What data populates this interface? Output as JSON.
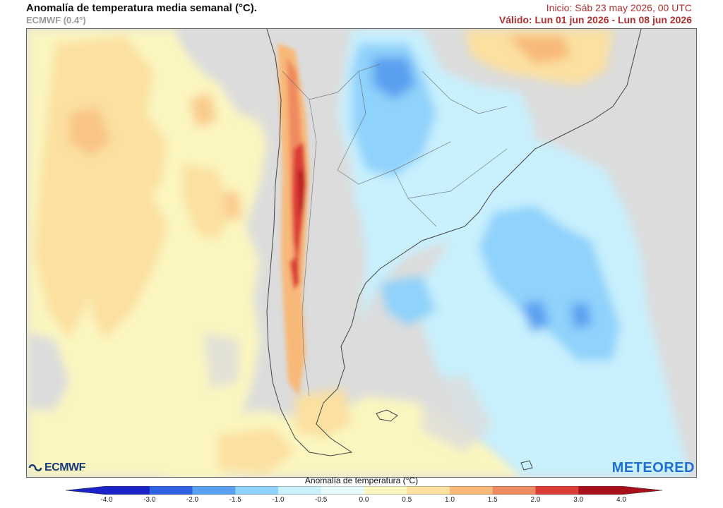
{
  "header": {
    "title": "Anomalía de temperatura media semanal (°C).",
    "model": "ECMWF (0.4°)",
    "init": "Inicio: Sáb 23 may 2026, 00 UTC",
    "valid": "Válido: Lun 01 jun 2026 - Lun 08 jun 2026"
  },
  "map": {
    "region": "Sudamérica austral",
    "variable": "Anomalía de temperatura media semanal"
  },
  "logos": {
    "left": "ECMWF",
    "right": "METEORED"
  },
  "legend": {
    "title": "Anomalía de temperatura (°C)",
    "ticks": [
      "-4.0",
      "-3.0",
      "-2.0",
      "-1.5",
      "-1.0",
      "-0.5",
      "0.0",
      "0.5",
      "1.0",
      "1.5",
      "2.0",
      "3.0",
      "4.0"
    ],
    "colors": [
      "#1b22c8",
      "#2e62e0",
      "#5aa0f0",
      "#8fd2fb",
      "#c8f0fd",
      "#e8fafe",
      "#dcdcdc",
      "#fbf6c0",
      "#fbe0a0",
      "#f8b978",
      "#f08a60",
      "#dc3c36",
      "#a8101a"
    ]
  }
}
